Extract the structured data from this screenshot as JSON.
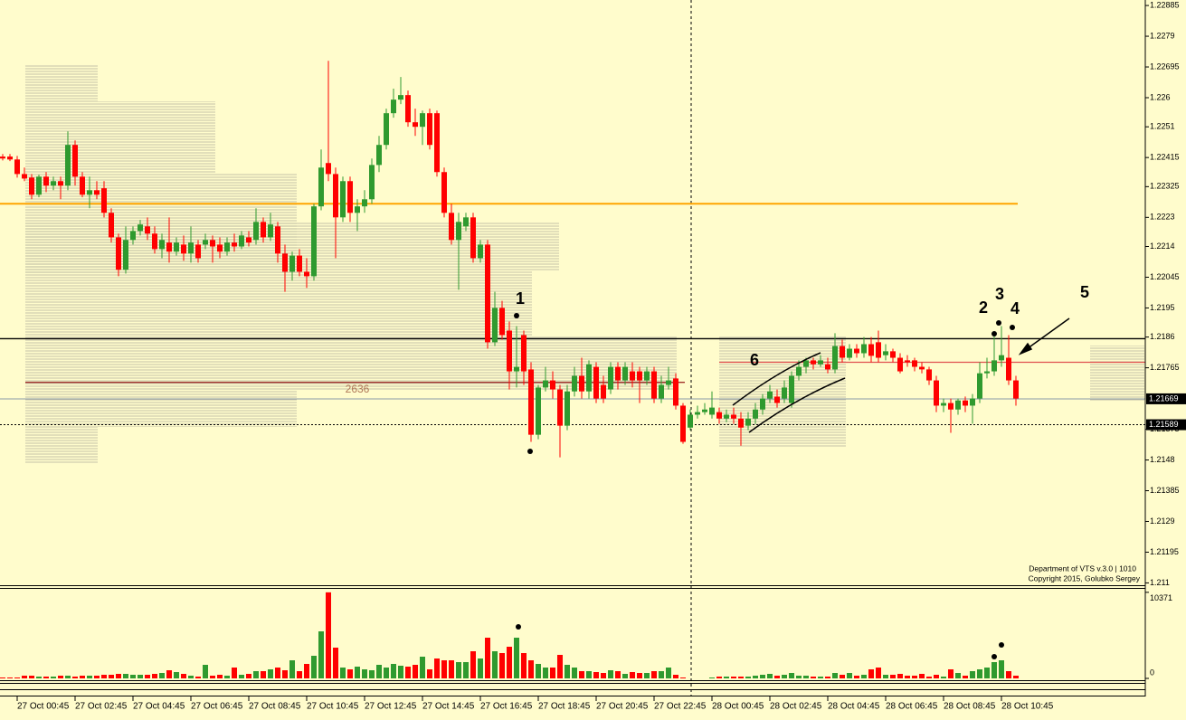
{
  "chart_data": [
    {
      "type": "candlestick",
      "ylim": [
        1.2109,
        1.22902
      ],
      "yticks": [
        1.22885,
        1.2279,
        1.22695,
        1.226,
        1.2251,
        1.22415,
        1.22325,
        1.2223,
        1.2214,
        1.22045,
        1.2195,
        1.2186,
        1.21765,
        1.21575,
        1.2148,
        1.21385,
        1.2129,
        1.21195,
        1.211
      ],
      "xticks": [
        {
          "value": 2,
          "label": "27 Oct 00:45"
        },
        {
          "value": 10,
          "label": "27 Oct 02:45"
        },
        {
          "value": 18,
          "label": "27 Oct 04:45"
        },
        {
          "value": 26,
          "label": "27 Oct 06:45"
        },
        {
          "value": 34,
          "label": "27 Oct 08:45"
        },
        {
          "value": 42,
          "label": "27 Oct 10:45"
        },
        {
          "value": 50,
          "label": "27 Oct 12:45"
        },
        {
          "value": 58,
          "label": "27 Oct 14:45"
        },
        {
          "value": 66,
          "label": "27 Oct 16:45"
        },
        {
          "value": 74,
          "label": "27 Oct 18:45"
        },
        {
          "value": 82,
          "label": "27 Oct 20:45"
        },
        {
          "value": 90,
          "label": "27 Oct 22:45"
        },
        {
          "value": 98,
          "label": "28 Oct 00:45"
        },
        {
          "value": 106,
          "label": "28 Oct 02:45"
        },
        {
          "value": 114,
          "label": "28 Oct 04:45"
        },
        {
          "value": 122,
          "label": "28 Oct 06:45"
        },
        {
          "value": 130,
          "label": "28 Oct 08:45"
        },
        {
          "value": 138,
          "label": "28 Oct 10:45"
        }
      ],
      "up_color": "#2f9a2f",
      "down_color": "#ff0000",
      "open": [
        1.22418,
        1.22418,
        1.22409,
        1.22364,
        1.22353,
        1.223,
        1.22356,
        1.22328,
        1.22342,
        1.22328,
        1.22454,
        1.22356,
        1.223,
        1.22314,
        1.2232,
        1.22244,
        1.22168,
        1.22068,
        1.2216,
        1.22188,
        1.22202,
        1.2218,
        1.22132,
        1.22152,
        1.22124,
        1.22146,
        1.22118,
        1.22146,
        1.22146,
        1.2216,
        1.22146,
        1.22124,
        1.22152,
        1.2214,
        1.22168,
        1.2216,
        1.22216,
        1.22168,
        1.22202,
        1.22118,
        1.22062,
        1.22112,
        1.22062,
        1.22048,
        1.22264,
        1.22398,
        1.22364,
        1.2223,
        1.22342,
        1.22244,
        1.22264,
        1.22286,
        1.22392,
        1.22454,
        1.22552,
        1.22594,
        1.22608,
        1.22524,
        1.2251,
        1.22552,
        1.22552,
        1.2237,
        1.22244,
        1.2216,
        1.22202,
        1.2223,
        1.22104,
        1.22146,
        1.21844,
        1.2195,
        1.2188,
        1.21754,
        1.21866,
        1.2176,
        1.21558,
        1.21704,
        1.21726,
        1.21698,
        1.21586,
        1.21692,
        1.2174,
        1.21692,
        1.21768,
        1.21712,
        1.21698,
        1.21768,
        1.21726,
        1.21754,
        1.21754,
        1.21726,
        1.21754,
        1.2167,
        1.21712,
        1.21732,
        1.21648,
        1.2158,
        1.2162,
        1.21628,
        1.2162,
        1.21628,
        1.21608,
        1.2162,
        1.21608,
        1.21586,
        1.21608,
        1.21636,
        1.2167,
        1.21676,
        1.2167,
        1.21656,
        1.2174,
        1.21768,
        1.21788,
        1.21776,
        1.21776,
        1.2176,
        1.21832,
        1.21796,
        1.21824,
        1.2181,
        1.21838,
        1.21844,
        1.21804,
        1.21816,
        1.21796,
        1.21788,
        1.21788,
        1.21768,
        1.2176,
        1.21726,
        1.21648,
        1.21656,
        1.21636,
        1.21664,
        1.21648,
        1.2167,
        1.21748,
        1.21754,
        1.21788,
        1.21796,
        1.21726
      ],
      "high": [
        1.22426,
        1.22426,
        1.2242,
        1.22384,
        1.22364,
        1.22362,
        1.2237,
        1.22356,
        1.22356,
        1.22496,
        1.22468,
        1.2237,
        1.22356,
        1.22342,
        1.22342,
        1.22258,
        1.2218,
        1.22202,
        1.22202,
        1.22222,
        1.2223,
        1.22202,
        1.2218,
        1.2223,
        1.22168,
        1.22174,
        1.22202,
        1.2216,
        1.2218,
        1.22174,
        1.22168,
        1.22168,
        1.2218,
        1.22188,
        1.22188,
        1.22258,
        1.2223,
        1.22244,
        1.22216,
        1.22146,
        1.22124,
        1.22132,
        1.22104,
        1.22272,
        1.2244,
        1.22714,
        1.22384,
        1.22356,
        1.22356,
        1.22286,
        1.22314,
        1.22412,
        1.22482,
        1.22566,
        1.22628,
        1.22664,
        1.22622,
        1.22566,
        1.2256,
        1.22566,
        1.2256,
        1.22384,
        1.22272,
        1.22244,
        1.22244,
        1.22244,
        1.2216,
        1.2216,
        1.22,
        1.21972,
        1.21908,
        1.21894,
        1.2188,
        1.21782,
        1.21712,
        1.21768,
        1.21754,
        1.21712,
        1.21712,
        1.21768,
        1.21796,
        1.21788,
        1.21782,
        1.2174,
        1.21782,
        1.21782,
        1.21782,
        1.21782,
        1.21768,
        1.21768,
        1.21768,
        1.2174,
        1.21768,
        1.21748,
        1.21656,
        1.21636,
        1.21648,
        1.21656,
        1.21692,
        1.21642,
        1.21636,
        1.21642,
        1.21628,
        1.21628,
        1.21656,
        1.21684,
        1.21712,
        1.21698,
        1.21726,
        1.21754,
        1.21788,
        1.21796,
        1.21796,
        1.21804,
        1.21796,
        1.21872,
        1.21852,
        1.21838,
        1.21838,
        1.2186,
        1.2186,
        1.2188,
        1.21838,
        1.21824,
        1.2181,
        1.21804,
        1.21796,
        1.21782,
        1.21768,
        1.2174,
        1.2167,
        1.2167,
        1.2167,
        1.21676,
        1.21684,
        1.21782,
        1.21796,
        1.21866,
        1.21894,
        1.21866,
        1.2174
      ],
      "low": [
        1.22406,
        1.22404,
        1.22353,
        1.22342,
        1.22286,
        1.22292,
        1.22308,
        1.22314,
        1.22286,
        1.22314,
        1.22328,
        1.22292,
        1.22258,
        1.22286,
        1.2223,
        1.22152,
        1.22048,
        1.22056,
        1.22146,
        1.22174,
        1.2216,
        1.22118,
        1.22104,
        1.2209,
        1.22112,
        1.22096,
        1.2209,
        1.2209,
        1.22132,
        1.2209,
        1.22104,
        1.22112,
        1.22124,
        1.22132,
        1.2214,
        1.22146,
        1.22152,
        1.22157,
        1.2209,
        1.22,
        1.22034,
        1.22048,
        1.22012,
        1.22034,
        1.22252,
        1.22342,
        1.22104,
        1.22216,
        1.22216,
        1.22188,
        1.22244,
        1.22272,
        1.2237,
        1.2244,
        1.22538,
        1.2258,
        1.2251,
        1.22482,
        1.22454,
        1.2244,
        1.22356,
        1.2223,
        1.22146,
        1.22006,
        1.22188,
        1.2209,
        1.2209,
        1.21824,
        1.21832,
        1.21852,
        1.21698,
        1.21704,
        1.21712,
        1.21536,
        1.21544,
        1.21692,
        1.2167,
        1.21488,
        1.21572,
        1.21676,
        1.2167,
        1.2167,
        1.21656,
        1.21656,
        1.21684,
        1.21698,
        1.21712,
        1.21704,
        1.21656,
        1.21712,
        1.21656,
        1.21656,
        1.21698,
        1.21636,
        1.2153,
        1.21572,
        1.21608,
        1.2162,
        1.21608,
        1.21592,
        1.21597,
        1.21592,
        1.21524,
        1.21572,
        1.21592,
        1.2162,
        1.21656,
        1.21642,
        1.21656,
        1.21642,
        1.21726,
        1.21748,
        1.2176,
        1.21768,
        1.21748,
        1.21748,
        1.21782,
        1.21788,
        1.21796,
        1.21796,
        1.21782,
        1.21782,
        1.21788,
        1.21782,
        1.21748,
        1.21768,
        1.21754,
        1.21748,
        1.21712,
        1.21628,
        1.21628,
        1.21564,
        1.2162,
        1.21628,
        1.21592,
        1.21656,
        1.21732,
        1.2174,
        1.21768,
        1.21712,
        1.21648
      ],
      "close": [
        1.22412,
        1.22409,
        1.22364,
        1.2235,
        1.223,
        1.22356,
        1.22328,
        1.22342,
        1.22328,
        1.22454,
        1.22356,
        1.223,
        1.22314,
        1.223,
        1.22244,
        1.22168,
        1.22068,
        1.2216,
        1.22188,
        1.22208,
        1.2218,
        1.22132,
        1.2216,
        1.22124,
        1.22152,
        1.22118,
        1.22152,
        1.22104,
        1.2216,
        1.2214,
        1.22124,
        1.22152,
        1.2214,
        1.22174,
        1.22152,
        1.22216,
        1.22168,
        1.22208,
        1.22118,
        1.22062,
        1.22112,
        1.22062,
        1.22048,
        1.22264,
        1.22384,
        1.22364,
        1.2223,
        1.22342,
        1.22244,
        1.22264,
        1.22286,
        1.22392,
        1.22454,
        1.22552,
        1.22594,
        1.22608,
        1.22524,
        1.2251,
        1.22552,
        1.22454,
        1.2237,
        1.22244,
        1.2216,
        1.22216,
        1.2223,
        1.22104,
        1.22146,
        1.21844,
        1.2195,
        1.21866,
        1.21754,
        1.21768,
        1.21754,
        1.21558,
        1.21704,
        1.21726,
        1.21698,
        1.21586,
        1.21692,
        1.2174,
        1.21692,
        1.21776,
        1.2167,
        1.2167,
        1.21768,
        1.21726,
        1.21768,
        1.21726,
        1.21726,
        1.21754,
        1.2167,
        1.21712,
        1.21726,
        1.21648,
        1.21536,
        1.2162,
        1.21628,
        1.21636,
        1.21642,
        1.21608,
        1.2162,
        1.21608,
        1.2158,
        1.21608,
        1.21636,
        1.2167,
        1.21692,
        1.21656,
        1.21704,
        1.2174,
        1.21768,
        1.21788,
        1.21776,
        1.21788,
        1.2176,
        1.21832,
        1.21796,
        1.21824,
        1.2181,
        1.21838,
        1.21802,
        1.21796,
        1.21816,
        1.21796,
        1.21754,
        1.21782,
        1.21768,
        1.2176,
        1.21726,
        1.21648,
        1.21656,
        1.21636,
        1.21664,
        1.21648,
        1.2167,
        1.21748,
        1.21754,
        1.21788,
        1.21804,
        1.21726,
        1.2167
      ],
      "levels": [
        {
          "value": 1.22272,
          "color": "#ffa500"
        },
        {
          "value": 1.21855,
          "color": "#000000"
        },
        {
          "value": 1.2172,
          "color": "#a0302a"
        },
        {
          "value": 1.21782,
          "color": "#e05050"
        }
      ],
      "price_labels": [
        1.21669,
        1.21589
      ],
      "annotations": [
        "1",
        "2",
        "3",
        "4",
        "5",
        "6",
        "2636"
      ],
      "notes": [
        "Department of VTS  v.3.0 | 1010",
        "Copyright 2015, Golubko Sergey"
      ]
    },
    {
      "type": "bar",
      "ylim": [
        0,
        10900
      ],
      "yticks": [
        0,
        10371
      ],
      "values": [
        109,
        109,
        109,
        327,
        327,
        218,
        218,
        218,
        327,
        327,
        218,
        327,
        327,
        327,
        436,
        436,
        545,
        545,
        436,
        436,
        436,
        545,
        654,
        981,
        763,
        545,
        327,
        218,
        1635,
        327,
        436,
        327,
        1308,
        436,
        545,
        872,
        872,
        1090,
        1308,
        981,
        2180,
        872,
        1744,
        2725,
        5668,
        10371,
        3706,
        1308,
        1090,
        1417,
        1090,
        981,
        1635,
        1308,
        1744,
        1526,
        1417,
        1635,
        2616,
        1090,
        2398,
        2180,
        2180,
        1962,
        1962,
        3270,
        2398,
        4905,
        3270,
        3052,
        3815,
        4905,
        3052,
        2180,
        1744,
        1308,
        1308,
        2834,
        1635,
        1308,
        872,
        872,
        763,
        654,
        981,
        872,
        545,
        763,
        654,
        654,
        872,
        872,
        1308,
        436,
        109,
        0,
        0,
        0,
        109,
        218,
        218,
        218,
        218,
        218,
        327,
        436,
        545,
        327,
        436,
        654,
        327,
        327,
        218,
        218,
        218,
        654,
        436,
        654,
        327,
        436,
        1090,
        1308,
        436,
        436,
        545,
        327,
        327,
        545,
        218,
        436,
        218,
        1090,
        654,
        327,
        872,
        1090,
        1308,
        1962,
        2180,
        872,
        327
      ]
    }
  ]
}
